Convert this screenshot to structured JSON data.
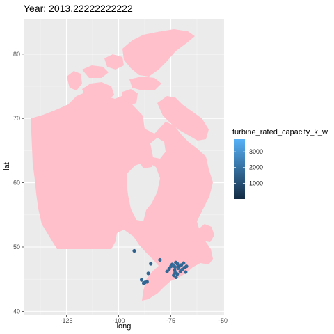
{
  "chart_data": {
    "type": "scatter",
    "title": "Year: 2013.22222222222",
    "xlabel": "long",
    "ylabel": "lat",
    "xlim": [
      -145.5,
      -49.5
    ],
    "ylim": [
      39.5,
      85.5
    ],
    "x_ticks": [
      -125,
      -100,
      -75,
      -50
    ],
    "x_tick_labels": [
      "-125",
      "-100",
      "-75",
      "-50"
    ],
    "y_ticks": [
      40,
      50,
      60,
      70,
      80
    ],
    "y_tick_labels": [
      "40",
      "50",
      "60",
      "70",
      "80"
    ],
    "grid": true,
    "map_region": "Canada",
    "map_fill": "#ffc0cb",
    "panel_background": "#ebebeb",
    "legend": {
      "title": "turbine_rated_capacity_k_w",
      "position": "right",
      "ticks": [
        1000,
        2000,
        3000
      ],
      "tick_labels": [
        "1000",
        "2000",
        "3000"
      ],
      "range": [
        0,
        3800
      ],
      "low_color": "#132b43",
      "high_color": "#56b1f7"
    },
    "points": [
      {
        "x": -92.5,
        "y": 49.4,
        "value": 1500
      },
      {
        "x": -89.0,
        "y": 44.9,
        "value": 1650
      },
      {
        "x": -88.0,
        "y": 44.4,
        "value": 1600
      },
      {
        "x": -87.4,
        "y": 44.5,
        "value": 1700
      },
      {
        "x": -86.4,
        "y": 44.6,
        "value": 1650
      },
      {
        "x": -85.8,
        "y": 45.9,
        "value": 1700
      },
      {
        "x": -84.6,
        "y": 47.4,
        "value": 1650
      },
      {
        "x": -80.2,
        "y": 48.0,
        "value": 1750
      },
      {
        "x": -76.8,
        "y": 46.2,
        "value": 1700
      },
      {
        "x": -75.8,
        "y": 46.6,
        "value": 1650
      },
      {
        "x": -74.9,
        "y": 47.0,
        "value": 1800
      },
      {
        "x": -74.3,
        "y": 47.3,
        "value": 1700
      },
      {
        "x": -73.7,
        "y": 47.1,
        "value": 1900
      },
      {
        "x": -73.2,
        "y": 46.4,
        "value": 1650
      },
      {
        "x": -72.9,
        "y": 46.0,
        "value": 1800
      },
      {
        "x": -73.6,
        "y": 45.6,
        "value": 1700
      },
      {
        "x": -72.5,
        "y": 45.3,
        "value": 1800
      },
      {
        "x": -71.9,
        "y": 45.8,
        "value": 1700
      },
      {
        "x": -71.4,
        "y": 46.7,
        "value": 2000
      },
      {
        "x": -71.0,
        "y": 47.0,
        "value": 1650
      },
      {
        "x": -70.4,
        "y": 46.2,
        "value": 1750
      },
      {
        "x": -70.0,
        "y": 47.2,
        "value": 1700
      },
      {
        "x": -69.6,
        "y": 46.5,
        "value": 1900
      },
      {
        "x": -68.9,
        "y": 47.5,
        "value": 1750
      },
      {
        "x": -68.5,
        "y": 46.8,
        "value": 1650
      },
      {
        "x": -67.9,
        "y": 46.1,
        "value": 1800
      },
      {
        "x": -67.5,
        "y": 47.0,
        "value": 1700
      },
      {
        "x": -71.9,
        "y": 47.4,
        "value": 1750
      },
      {
        "x": -72.6,
        "y": 47.6,
        "value": 1700
      },
      {
        "x": -73.0,
        "y": 46.9,
        "value": 1850
      }
    ]
  }
}
